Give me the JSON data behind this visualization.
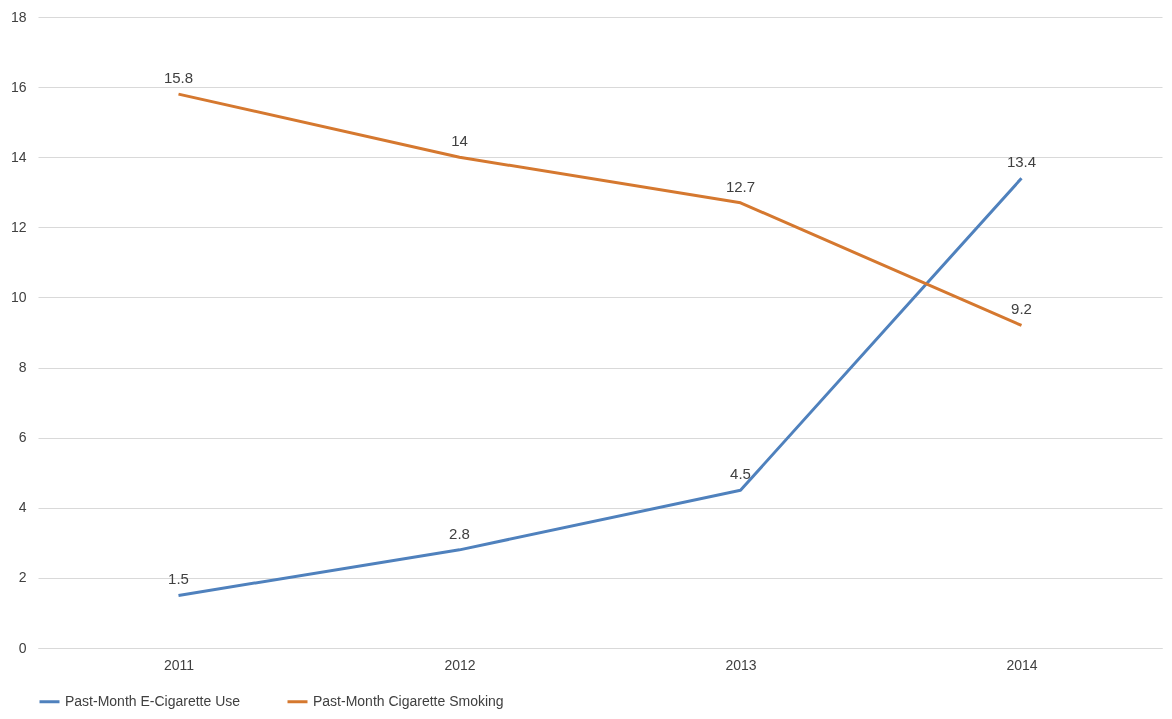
{
  "chart_data": {
    "type": "line",
    "categories": [
      "2011",
      "2012",
      "2013",
      "2014"
    ],
    "series": [
      {
        "name": "Past-Month E-Cigarette Use",
        "color": "#4f81bd",
        "values": [
          1.5,
          2.8,
          4.5,
          13.4
        ]
      },
      {
        "name": "Past-Month Cigarette Smoking",
        "color": "#d5782f",
        "values": [
          15.8,
          14,
          12.7,
          9.2
        ]
      }
    ],
    "ylim": [
      0,
      18
    ],
    "yticks": [
      0,
      2,
      4,
      6,
      8,
      10,
      12,
      14,
      16,
      18
    ],
    "grid": "y",
    "legend": "bottom",
    "data_labels": true,
    "marker": "none",
    "line_style": "solid"
  }
}
